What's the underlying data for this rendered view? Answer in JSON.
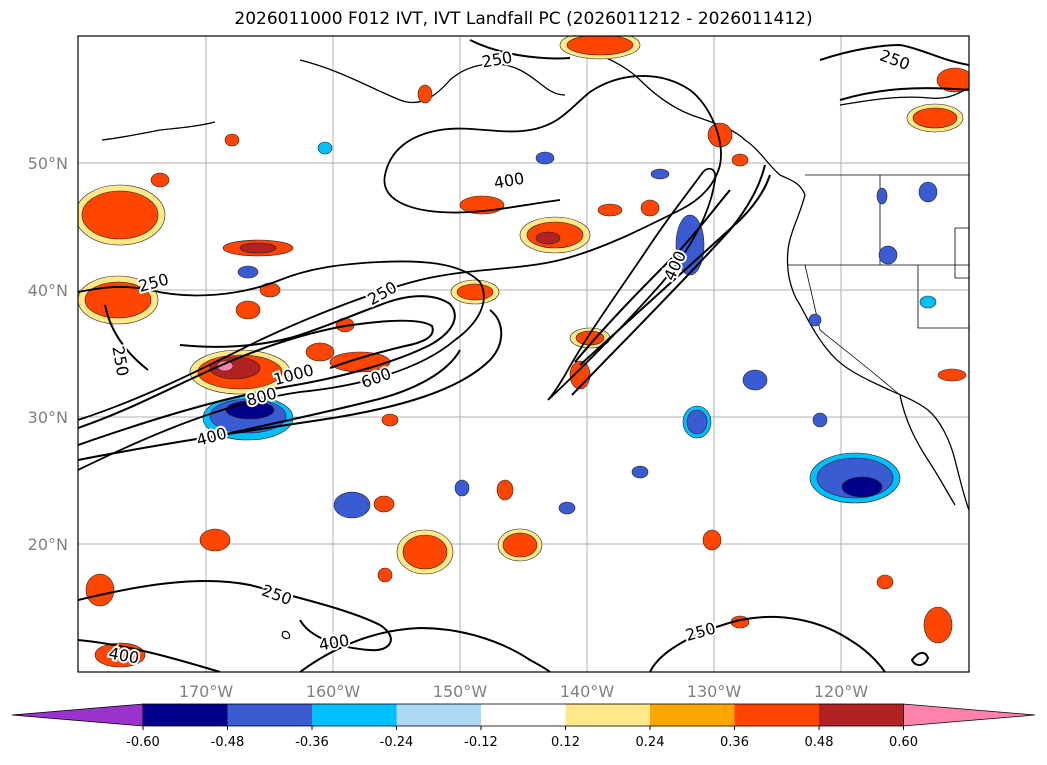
{
  "title": "2026011000 F012 IVT, IVT Landfall PC (2026011212 - 2026011412)",
  "map": {
    "lat_labels": [
      "50°N",
      "40°N",
      "30°N",
      "20°N"
    ],
    "lon_labels": [
      "170°W",
      "160°W",
      "150°W",
      "140°W",
      "130°W",
      "120°W"
    ],
    "contour_labels": [
      "250",
      "250",
      "250",
      "250",
      "250",
      "250",
      "250",
      "400",
      "400",
      "400",
      "400",
      "400",
      "600",
      "800",
      "1000"
    ]
  },
  "colorbar": {
    "colors": [
      "#9933cc",
      "#00008b",
      "#3a5bd1",
      "#00bfff",
      "#add8f5",
      "#ffffff",
      "#ffe88a",
      "#ffa500",
      "#ff4500",
      "#b22222",
      "#ff82ab"
    ],
    "ticks": [
      "-0.60",
      "-0.48",
      "-0.36",
      "-0.24",
      "-0.12",
      "0.12",
      "0.24",
      "0.36",
      "0.48",
      "0.60"
    ]
  }
}
